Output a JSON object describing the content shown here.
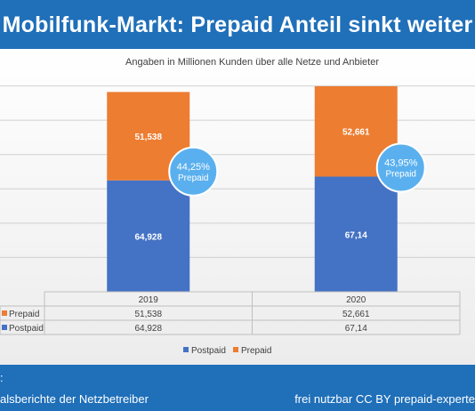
{
  "banner": {
    "title": "Mobilfunk-Markt: Prepaid Anteil sinkt weiter"
  },
  "footer": {
    "source_label": ":",
    "source_text": "alsberichte der Netzbetreiber",
    "license": "frei nutzbar CC BY prepaid-experte"
  },
  "chart_data": {
    "type": "bar",
    "stacked": true,
    "subtitle": "Angaben in Millionen Kunden über alle Netze und Anbieter",
    "categories": [
      "2019",
      "2020"
    ],
    "series": [
      {
        "name": "Postpaid",
        "values": [
          64.928,
          67.14
        ],
        "labels": [
          "64,928",
          "67,14"
        ],
        "color": "#4472c4"
      },
      {
        "name": "Prepaid",
        "values": [
          51.538,
          52.661
        ],
        "labels": [
          "51,538",
          "52,661"
        ],
        "color": "#ed7d31"
      }
    ],
    "annotations": [
      {
        "category": "2019",
        "share": "44,25%",
        "label": "Prepaid"
      },
      {
        "category": "2020",
        "share": "43,95%",
        "label": "Prepaid"
      }
    ],
    "table": {
      "rows": [
        {
          "name": "Prepaid",
          "values": [
            "51,538",
            "52,661"
          ]
        },
        {
          "name": "Postpaid",
          "values": [
            "64,928",
            "67,14"
          ]
        }
      ]
    },
    "legend": {
      "position": "bottom",
      "items": [
        "Postpaid",
        "Prepaid"
      ]
    },
    "ylim": [
      0,
      140
    ],
    "grid": true
  }
}
